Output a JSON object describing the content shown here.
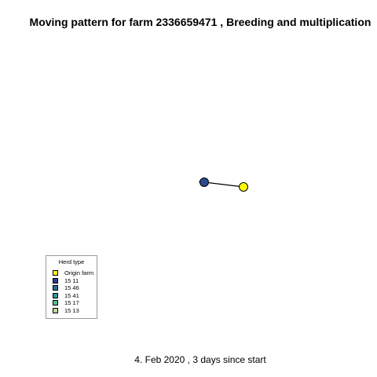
{
  "title": "Moving pattern for farm 2336659471 , Breeding and multiplication",
  "legend": {
    "title": "Herd type",
    "items": [
      {
        "label": "Origin farm",
        "color": "#FFF31F"
      },
      {
        "label": "15 11",
        "color": "#2B3F8C"
      },
      {
        "label": "15 46",
        "color": "#2A6D95"
      },
      {
        "label": "15 41",
        "color": "#2A9A99"
      },
      {
        "label": "15 17",
        "color": "#55BC8C"
      },
      {
        "label": "15 13",
        "color": "#BFD79A"
      }
    ]
  },
  "map": {
    "nodes": [
      {
        "name": "origin-farm-node",
        "herd_type": "Origin farm",
        "color": "#FFFF00"
      },
      {
        "name": "destination-farm-node",
        "herd_type": "15 11",
        "color": "#2B4A8F"
      }
    ],
    "movements": [
      {
        "from": "origin-farm-node",
        "to": "destination-farm-node"
      }
    ]
  },
  "footer": "4. Feb 2020 ,  3 days since start"
}
